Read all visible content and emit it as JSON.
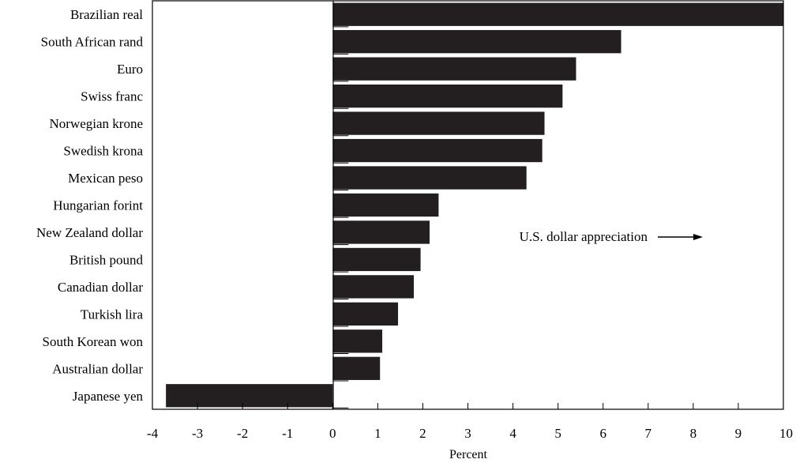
{
  "chart_data": {
    "type": "bar",
    "orientation": "horizontal",
    "categories": [
      "Brazilian real",
      "South African rand",
      "Euro",
      "Swiss franc",
      "Norwegian krone",
      "Swedish krona",
      "Mexican peso",
      "Hungarian forint",
      "New Zealand dollar",
      "British pound",
      "Canadian dollar",
      "Turkish lira",
      "South Korean won",
      "Australian dollar",
      "Japanese yen"
    ],
    "values": [
      10.2,
      6.4,
      5.4,
      5.1,
      4.7,
      4.65,
      4.3,
      2.35,
      2.15,
      1.95,
      1.8,
      1.45,
      1.1,
      1.05,
      -3.7
    ],
    "xlabel": "Percent",
    "xlim": [
      -4,
      10
    ],
    "xticks": [
      "-4",
      "-3",
      "-2",
      "-1",
      "0",
      "1",
      "2",
      "3",
      "4",
      "5",
      "6",
      "7",
      "8",
      "9",
      "10"
    ],
    "bar_color": "#231f20",
    "annotation": "U.S. dollar appreciation",
    "grid": false
  }
}
